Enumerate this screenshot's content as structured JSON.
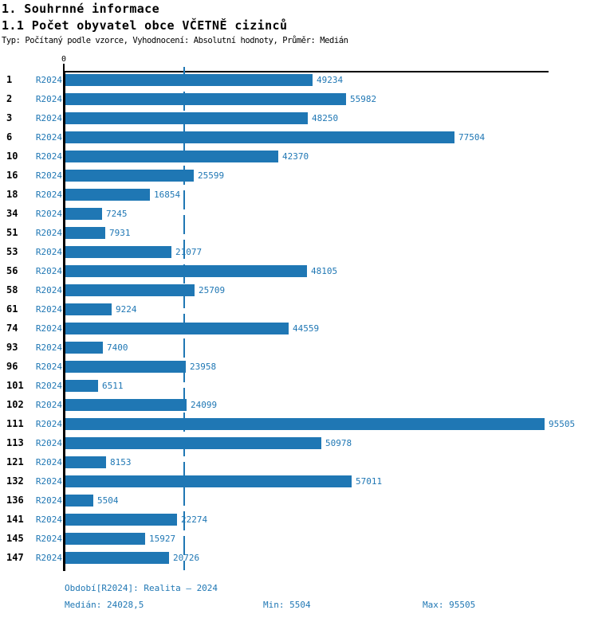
{
  "header": {
    "title1": "1. Souhrnné informace",
    "title2": "1.1 Počet obyvatel obce VČETNĚ cizinců",
    "meta": "Typ: Počítaný podle vzorce, Vyhodnocení: Absolutní hodnoty, Průměr: Medián"
  },
  "chart_data": {
    "type": "bar",
    "orientation": "horizontal",
    "title": "1.1 Počet obyvatel obce VČETNĚ cizinců",
    "categories": [
      "1",
      "2",
      "3",
      "6",
      "10",
      "16",
      "18",
      "34",
      "51",
      "53",
      "56",
      "58",
      "61",
      "74",
      "93",
      "96",
      "101",
      "102",
      "111",
      "113",
      "121",
      "132",
      "136",
      "141",
      "145",
      "147"
    ],
    "series": [
      {
        "name": "R2024",
        "values": [
          49234,
          55982,
          48250,
          77504,
          42370,
          25599,
          16854,
          7245,
          7931,
          21077,
          48105,
          25709,
          9224,
          44559,
          7400,
          23958,
          6511,
          24099,
          95505,
          50978,
          8153,
          57011,
          5504,
          22274,
          15927,
          20726
        ]
      }
    ],
    "xlim": [
      0,
      95505
    ],
    "x_tick_labels": [
      "0"
    ],
    "median_line_value": 24028.5,
    "grid": "median-only",
    "legend_position": "none",
    "bar_labels_visible": true
  },
  "colors": {
    "bar": "#1f77b4",
    "blue_text": "#1f77b4",
    "axis": "#000000",
    "heading_text": "#000000"
  },
  "axis": {
    "zero_label": "0"
  },
  "footer": {
    "period": "Období[R2024]: Realita – 2024",
    "median": "Medián: 24028,5",
    "min": "Min: 5504",
    "max": "Max: 95505"
  }
}
